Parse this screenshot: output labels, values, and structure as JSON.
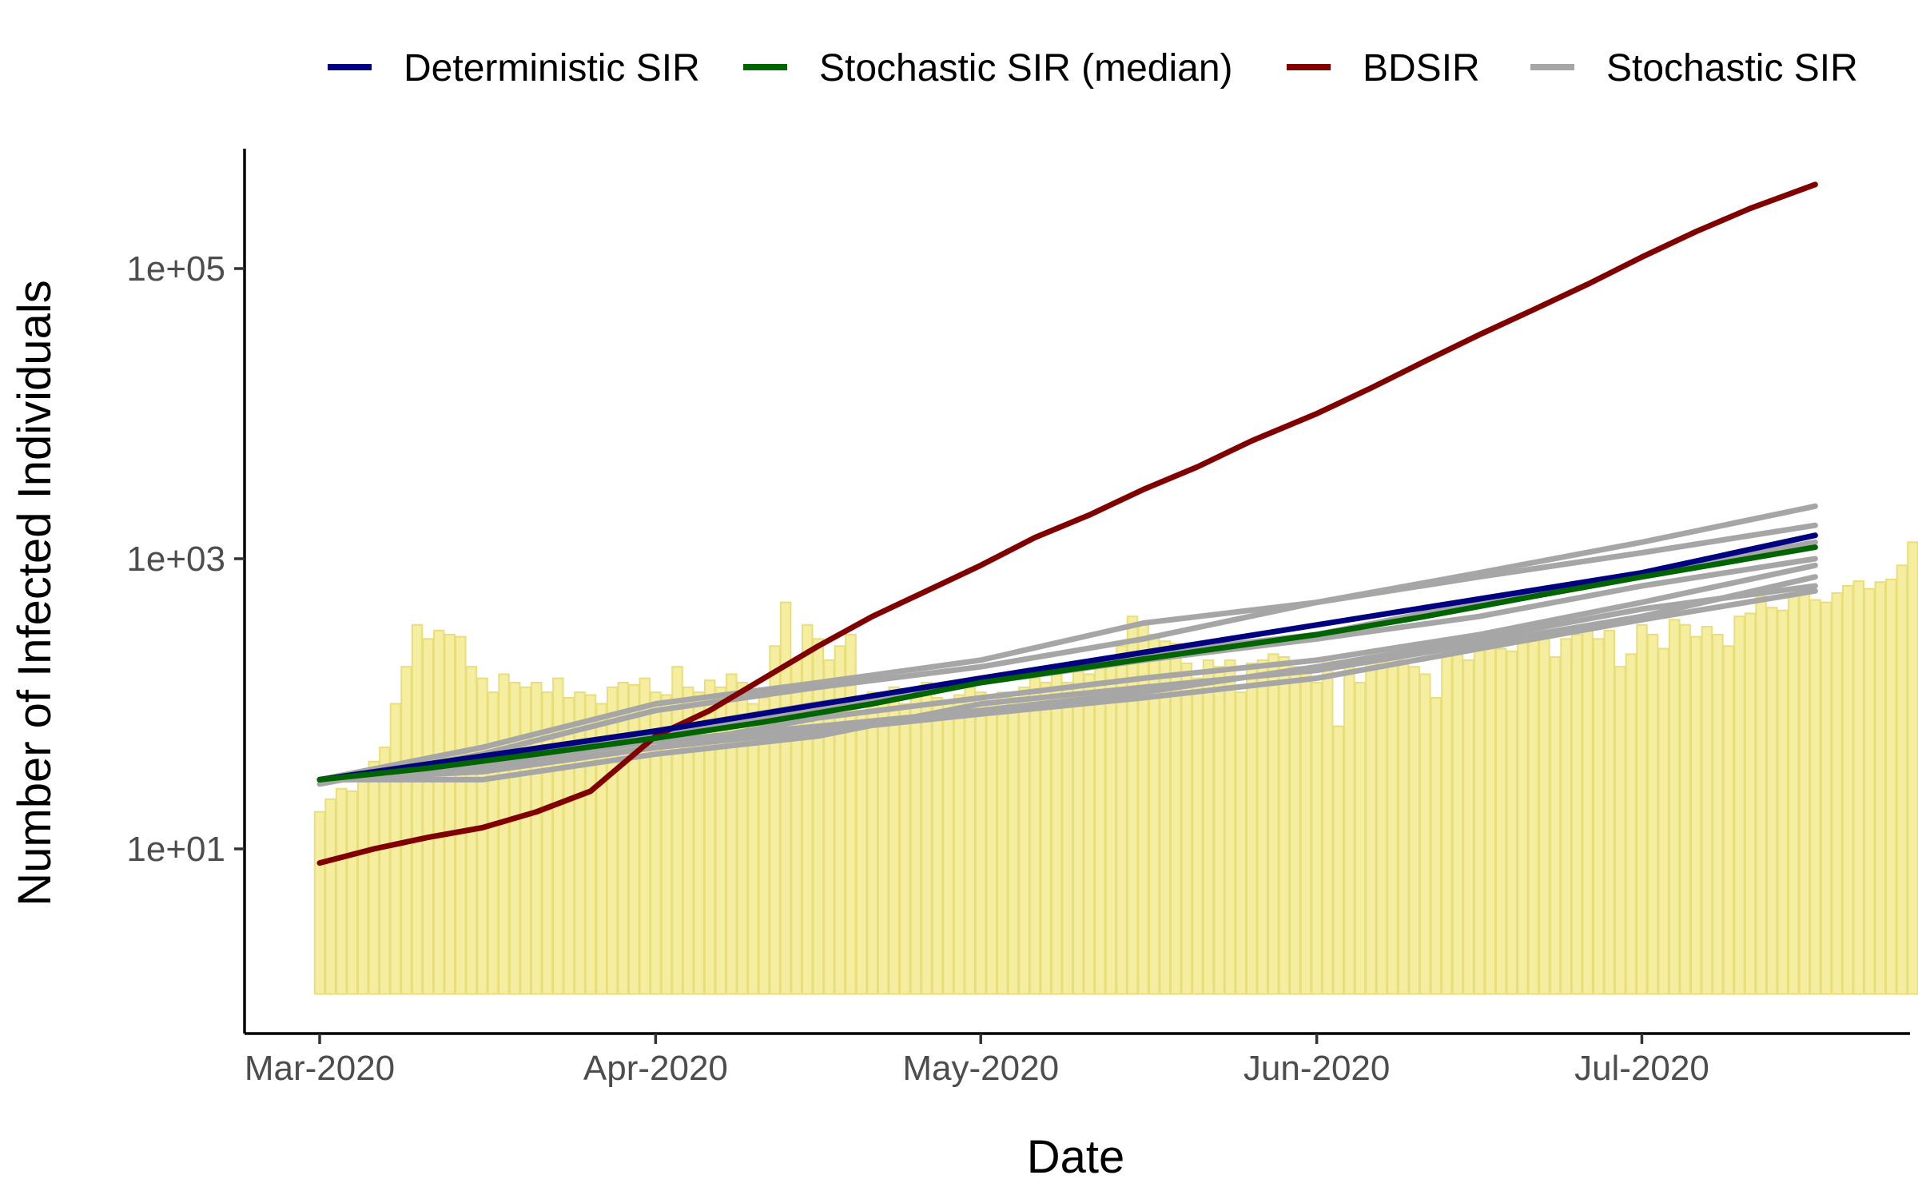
{
  "chart_data": {
    "type": "line",
    "title": "",
    "xlabel": "Date",
    "ylabel": "Number of Infected Individuals",
    "x_axis": {
      "type": "date",
      "range": [
        "2020-03-01",
        "2020-07-18"
      ],
      "ticks": [
        {
          "date": "2020-03-01",
          "label": "Mar-2020"
        },
        {
          "date": "2020-04-01",
          "label": "Apr-2020"
        },
        {
          "date": "2020-05-01",
          "label": "May-2020"
        },
        {
          "date": "2020-06-01",
          "label": "Jun-2020"
        },
        {
          "date": "2020-07-01",
          "label": "Jul-2020"
        }
      ]
    },
    "y_axis": {
      "scale": "log10",
      "range": [
        0.7,
        650000
      ],
      "ticks": [
        {
          "value": 10,
          "label": "1e+01"
        },
        {
          "value": 1000,
          "label": "1e+03"
        },
        {
          "value": 100000,
          "label": "1e+05"
        }
      ]
    },
    "grid": false,
    "legend": {
      "position": "top",
      "entries": [
        {
          "label": "Deterministic SIR",
          "color": "#000080"
        },
        {
          "label": "Stochastic SIR (median)",
          "color": "#006400"
        },
        {
          "label": "BDSIR",
          "color": "#800000"
        },
        {
          "label": "Stochastic SIR",
          "color": "#A6A6A6"
        }
      ]
    },
    "bars": {
      "color": "#F5EEA0",
      "edge_color": "#E9DE79",
      "start_date": "2020-03-01",
      "baseline": 1,
      "daily_values": [
        18,
        22,
        26,
        25,
        30,
        40,
        50,
        100,
        180,
        350,
        280,
        320,
        300,
        290,
        180,
        150,
        120,
        160,
        140,
        130,
        140,
        120,
        150,
        110,
        120,
        115,
        100,
        130,
        140,
        135,
        150,
        120,
        115,
        180,
        130,
        120,
        145,
        130,
        160,
        140,
        100,
        110,
        250,
        500,
        200,
        350,
        280,
        200,
        250,
        300,
        90,
        120,
        110,
        130,
        100,
        120,
        140,
        110,
        100,
        115,
        130,
        120,
        100,
        120,
        110,
        130,
        150,
        140,
        160,
        140,
        170,
        160,
        180,
        200,
        250,
        400,
        350,
        300,
        270,
        260,
        190,
        150,
        200,
        180,
        200,
        120,
        190,
        200,
        220,
        210,
        180,
        170,
        140,
        200,
        70,
        180,
        140,
        230,
        200,
        240,
        200,
        180,
        160,
        110,
        220,
        230,
        200,
        300,
        280,
        240,
        230,
        300,
        290,
        320,
        210,
        280,
        300,
        330,
        280,
        320,
        180,
        220,
        350,
        300,
        240,
        380,
        350,
        290,
        340,
        300,
        250,
        400,
        420,
        550,
        460,
        440,
        560,
        600,
        520,
        500,
        580,
        650,
        700,
        620,
        690,
        720,
        900,
        1300,
        900,
        800,
        1200,
        1400,
        1600,
        1500
      ]
    },
    "series": [
      {
        "name": "Deterministic SIR",
        "color": "#000080",
        "points": [
          [
            "2020-03-01",
            30
          ],
          [
            "2020-04-01",
            65
          ],
          [
            "2020-05-01",
            150
          ],
          [
            "2020-06-01",
            350
          ],
          [
            "2020-07-01",
            800
          ],
          [
            "2020-07-17",
            1450
          ]
        ]
      },
      {
        "name": "Stochastic SIR (median)",
        "color": "#006400",
        "points": [
          [
            "2020-03-01",
            30
          ],
          [
            "2020-03-11",
            36
          ],
          [
            "2020-03-21",
            45
          ],
          [
            "2020-04-01",
            58
          ],
          [
            "2020-04-11",
            75
          ],
          [
            "2020-04-21",
            100
          ],
          [
            "2020-05-01",
            140
          ],
          [
            "2020-05-11",
            180
          ],
          [
            "2020-05-21",
            230
          ],
          [
            "2020-06-01",
            300
          ],
          [
            "2020-06-11",
            400
          ],
          [
            "2020-06-21",
            550
          ],
          [
            "2020-07-01",
            750
          ],
          [
            "2020-07-17",
            1200
          ]
        ]
      },
      {
        "name": "BDSIR",
        "color": "#800000",
        "points": [
          [
            "2020-03-01",
            8
          ],
          [
            "2020-03-06",
            10
          ],
          [
            "2020-03-11",
            12
          ],
          [
            "2020-03-16",
            14
          ],
          [
            "2020-03-21",
            18
          ],
          [
            "2020-03-26",
            25
          ],
          [
            "2020-04-01",
            60
          ],
          [
            "2020-04-06",
            90
          ],
          [
            "2020-04-11",
            150
          ],
          [
            "2020-04-16",
            250
          ],
          [
            "2020-04-21",
            400
          ],
          [
            "2020-04-26",
            600
          ],
          [
            "2020-05-01",
            900
          ],
          [
            "2020-05-06",
            1400
          ],
          [
            "2020-05-11",
            2000
          ],
          [
            "2020-05-16",
            3000
          ],
          [
            "2020-05-21",
            4300
          ],
          [
            "2020-05-26",
            6500
          ],
          [
            "2020-06-01",
            10000
          ],
          [
            "2020-06-06",
            15000
          ],
          [
            "2020-06-11",
            23000
          ],
          [
            "2020-06-16",
            35000
          ],
          [
            "2020-06-21",
            52000
          ],
          [
            "2020-06-26",
            78000
          ],
          [
            "2020-07-01",
            120000
          ],
          [
            "2020-07-06",
            180000
          ],
          [
            "2020-07-11",
            260000
          ],
          [
            "2020-07-17",
            380000
          ]
        ]
      }
    ],
    "stochastic_runs": [
      {
        "name": "Stochastic SIR",
        "points": [
          [
            "2020-03-01",
            28
          ],
          [
            "2020-03-16",
            45
          ],
          [
            "2020-04-01",
            90
          ],
          [
            "2020-04-16",
            130
          ],
          [
            "2020-05-01",
            180
          ],
          [
            "2020-05-16",
            280
          ],
          [
            "2020-06-01",
            500
          ],
          [
            "2020-06-16",
            800
          ],
          [
            "2020-07-01",
            1300
          ],
          [
            "2020-07-17",
            2300
          ]
        ]
      },
      {
        "name": "Stochastic SIR",
        "points": [
          [
            "2020-03-01",
            30
          ],
          [
            "2020-03-16",
            50
          ],
          [
            "2020-04-01",
            100
          ],
          [
            "2020-04-16",
            140
          ],
          [
            "2020-05-01",
            200
          ],
          [
            "2020-05-16",
            360
          ],
          [
            "2020-06-01",
            500
          ],
          [
            "2020-06-16",
            750
          ],
          [
            "2020-07-01",
            1100
          ],
          [
            "2020-07-17",
            1700
          ]
        ]
      },
      {
        "name": "Stochastic SIR",
        "points": [
          [
            "2020-03-01",
            30
          ],
          [
            "2020-03-16",
            40
          ],
          [
            "2020-04-01",
            60
          ],
          [
            "2020-04-16",
            90
          ],
          [
            "2020-05-01",
            140
          ],
          [
            "2020-05-16",
            220
          ],
          [
            "2020-06-01",
            300
          ],
          [
            "2020-06-16",
            500
          ],
          [
            "2020-07-01",
            800
          ],
          [
            "2020-07-17",
            1300
          ]
        ]
      },
      {
        "name": "Stochastic SIR",
        "points": [
          [
            "2020-03-01",
            30
          ],
          [
            "2020-03-16",
            35
          ],
          [
            "2020-04-01",
            50
          ],
          [
            "2020-04-16",
            80
          ],
          [
            "2020-05-01",
            110
          ],
          [
            "2020-05-16",
            150
          ],
          [
            "2020-06-01",
            200
          ],
          [
            "2020-06-16",
            300
          ],
          [
            "2020-07-01",
            500
          ],
          [
            "2020-07-17",
            900
          ]
        ]
      },
      {
        "name": "Stochastic SIR",
        "points": [
          [
            "2020-03-01",
            30
          ],
          [
            "2020-03-16",
            38
          ],
          [
            "2020-04-01",
            55
          ],
          [
            "2020-04-16",
            70
          ],
          [
            "2020-05-01",
            90
          ],
          [
            "2020-05-16",
            120
          ],
          [
            "2020-06-01",
            180
          ],
          [
            "2020-06-16",
            280
          ],
          [
            "2020-07-01",
            450
          ],
          [
            "2020-07-17",
            650
          ]
        ]
      },
      {
        "name": "Stochastic SIR",
        "points": [
          [
            "2020-03-01",
            30
          ],
          [
            "2020-03-16",
            30
          ],
          [
            "2020-04-01",
            45
          ],
          [
            "2020-04-16",
            60
          ],
          [
            "2020-05-01",
            100
          ],
          [
            "2020-05-16",
            130
          ],
          [
            "2020-06-01",
            170
          ],
          [
            "2020-06-16",
            260
          ],
          [
            "2020-07-01",
            400
          ],
          [
            "2020-07-17",
            750
          ]
        ]
      },
      {
        "name": "Stochastic SIR",
        "points": [
          [
            "2020-03-01",
            30
          ],
          [
            "2020-03-16",
            42
          ],
          [
            "2020-04-01",
            65
          ],
          [
            "2020-04-16",
            100
          ],
          [
            "2020-05-01",
            140
          ],
          [
            "2020-05-16",
            200
          ],
          [
            "2020-06-01",
            280
          ],
          [
            "2020-06-16",
            400
          ],
          [
            "2020-07-01",
            650
          ],
          [
            "2020-07-17",
            1000
          ]
        ]
      },
      {
        "name": "Stochastic SIR",
        "points": [
          [
            "2020-03-01",
            30
          ],
          [
            "2020-03-16",
            34
          ],
          [
            "2020-04-01",
            50
          ],
          [
            "2020-04-16",
            65
          ],
          [
            "2020-05-01",
            85
          ],
          [
            "2020-05-16",
            110
          ],
          [
            "2020-06-01",
            150
          ],
          [
            "2020-06-16",
            240
          ],
          [
            "2020-07-01",
            380
          ],
          [
            "2020-07-17",
            600
          ]
        ]
      }
    ]
  }
}
